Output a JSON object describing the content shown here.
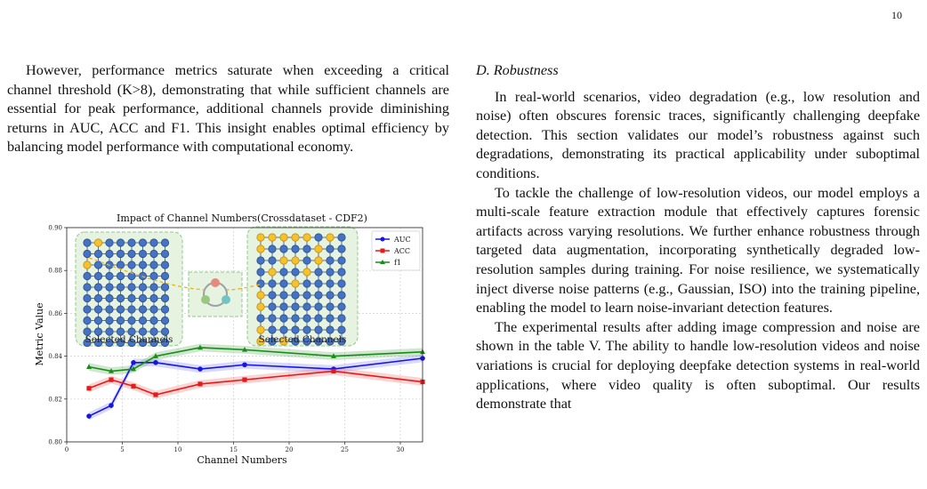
{
  "page_number": "10",
  "left_column": {
    "para1": "However, performance metrics saturate when exceeding a critical channel threshold (K>8), demonstrating that while sufficient channels are essential for peak performance, additional channels provide diminishing returns in AUC, ACC and F1. This insight enables optimal efficiency by balancing model performance with computational economy."
  },
  "right_column": {
    "section_title": "D. Robustness",
    "para1": "In real-world scenarios, video degradation (e.g., low resolution and noise) often obscures forensic traces, significantly challenging deepfake detection. This section validates our model’s robustness against such degradations, demonstrating its practical applicability under suboptimal conditions.",
    "para2": "To tackle the challenge of low-resolution videos, our model employs a multi-scale feature extraction module that effectively captures forensic artifacts across varying resolutions. We further enhance robustness through targeted data augmentation, incorporating synthetically degraded low-resolution samples during training. For noise resilience, we systematically inject diverse noise patterns (e.g., Gaussian, ISO) into the training pipeline, enabling the model to learn noise-invariant detection features.",
    "para3": "The experimental results after adding image compression and noise are shown in the table V. The ability to handle low-resolution videos and noise variations is crucial for deploying deepfake detection systems in real-world applications, where video quality is often suboptimal. Our results demonstrate that"
  },
  "figure": {
    "inset_left_label": "Selected Channels",
    "inset_right_label": "Selected Channels"
  },
  "chart_data": {
    "type": "line",
    "title": "Impact of Channel Numbers(Crossdataset - CDF2)",
    "xlabel": "Channel Numbers",
    "ylabel": "Metric Value",
    "xlim": [
      0,
      32
    ],
    "ylim": [
      0.8,
      0.9
    ],
    "xticks": [
      0,
      5,
      10,
      15,
      20,
      25,
      30
    ],
    "yticks": [
      0.8,
      0.82,
      0.84,
      0.86,
      0.88,
      0.9
    ],
    "grid": true,
    "legend_position": "top-right",
    "x": [
      2,
      4,
      6,
      8,
      12,
      16,
      24,
      32
    ],
    "series": [
      {
        "name": "AUC",
        "color": "#1515e6",
        "marker": "circle",
        "values": [
          0.812,
          0.817,
          0.837,
          0.837,
          0.834,
          0.836,
          0.834,
          0.839
        ]
      },
      {
        "name": "ACC",
        "color": "#e51b1b",
        "marker": "square",
        "values": [
          0.825,
          0.829,
          0.826,
          0.822,
          0.827,
          0.829,
          0.833,
          0.828
        ]
      },
      {
        "name": "f1",
        "color": "#1a8a1a",
        "marker": "triangle",
        "values": [
          0.835,
          0.833,
          0.834,
          0.84,
          0.844,
          0.843,
          0.84,
          0.842
        ]
      }
    ]
  }
}
